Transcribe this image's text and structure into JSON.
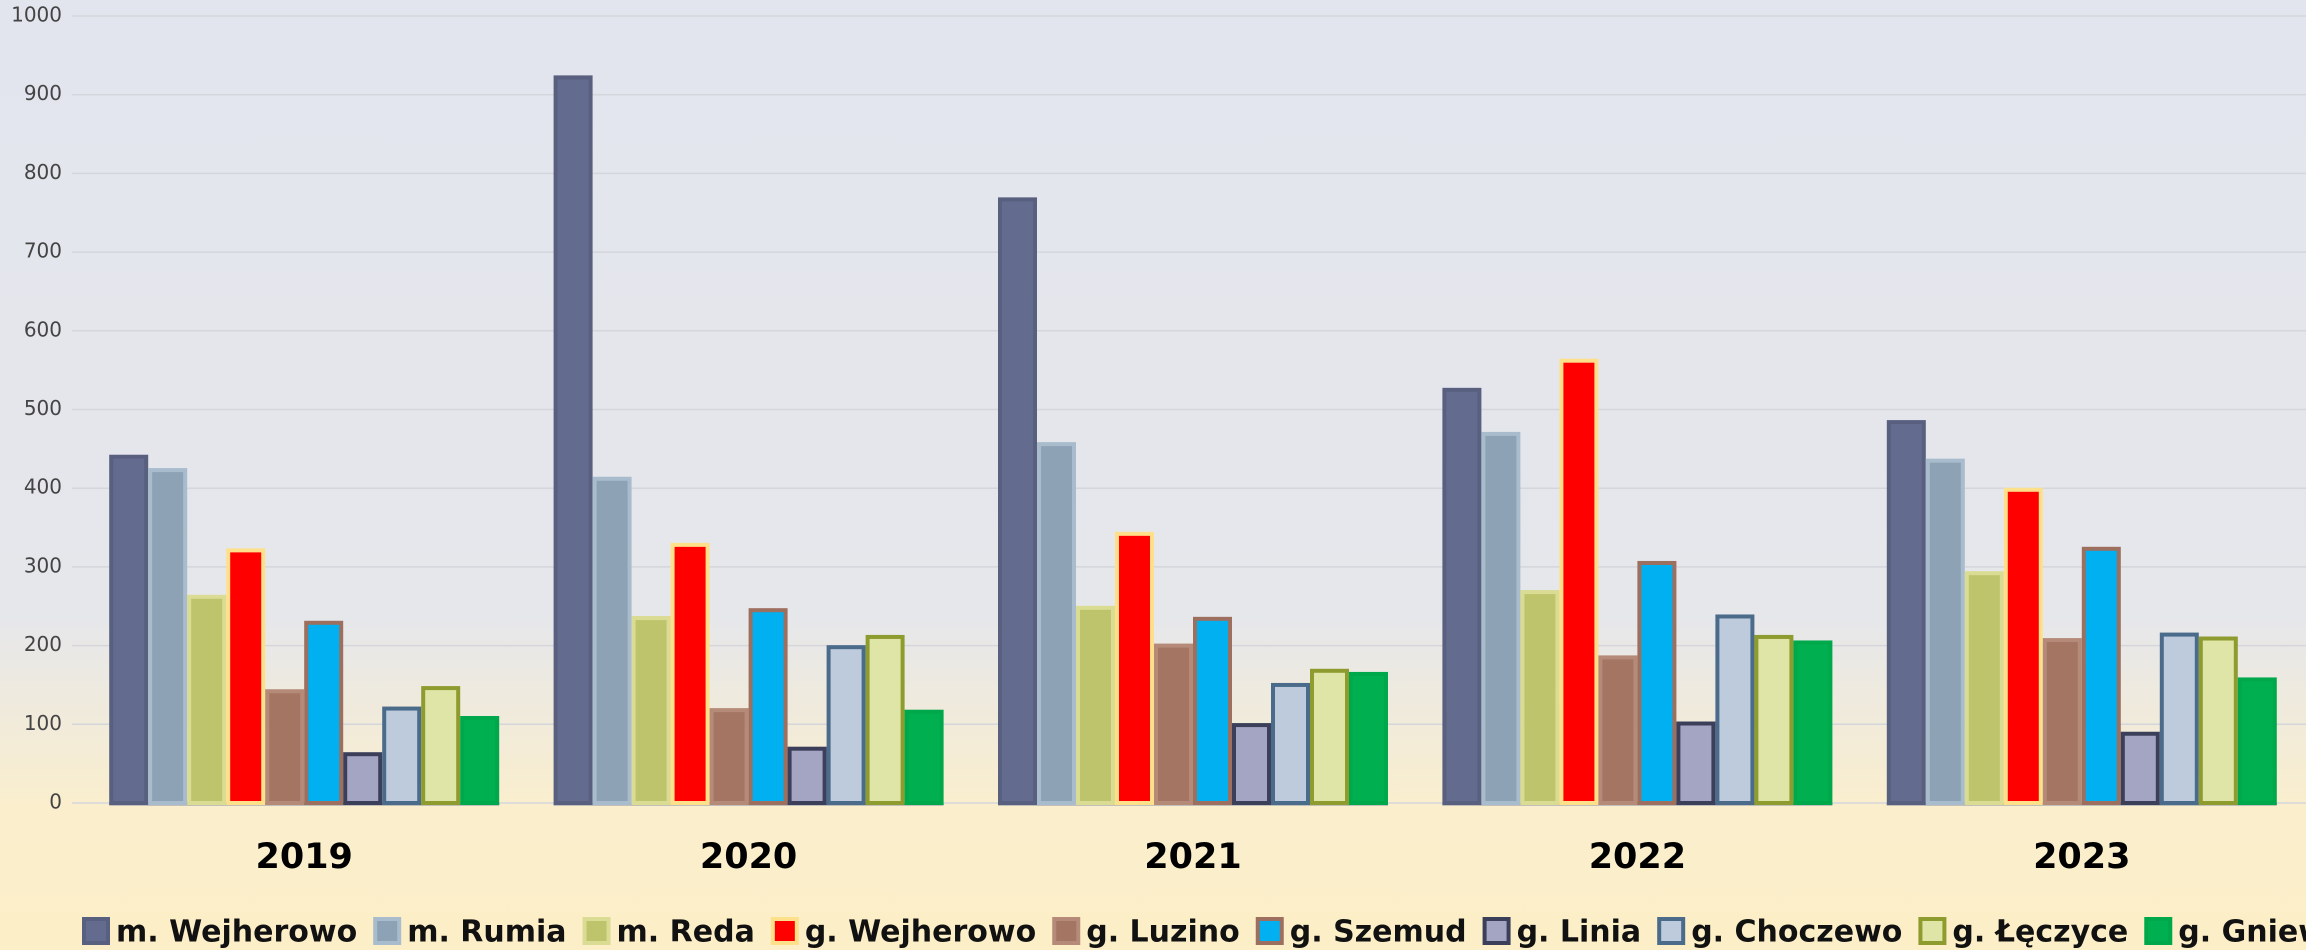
{
  "chart_data": {
    "type": "bar",
    "categories": [
      "2019",
      "2020",
      "2021",
      "2022",
      "2023"
    ],
    "series": [
      {
        "name": "m. Wejherowo",
        "color": "#636b8f",
        "edgecolor": "#59607f",
        "values": [
          440,
          922,
          767,
          525,
          484
        ]
      },
      {
        "name": "m. Rumia",
        "color": "#8ea2b6",
        "edgecolor": "#a9bccd",
        "values": [
          423,
          412,
          456,
          469,
          435
        ]
      },
      {
        "name": "m. Reda",
        "color": "#bec46c",
        "edgecolor": "#d9dc92",
        "values": [
          262,
          235,
          248,
          268,
          292
        ]
      },
      {
        "name": "g. Wejherowo",
        "color": "#ff0000",
        "edgecolor": "#ffe08a",
        "values": [
          321,
          328,
          342,
          562,
          398
        ]
      },
      {
        "name": "g. Luzino",
        "color": "#a47563",
        "edgecolor": "#b58a78",
        "values": [
          142,
          118,
          200,
          185,
          207
        ]
      },
      {
        "name": "g. Szemud",
        "color": "#00b0f0",
        "edgecolor": "#9c6f5f",
        "values": [
          229,
          245,
          234,
          305,
          323
        ]
      },
      {
        "name": "g. Linia",
        "color": "#a3a5c3",
        "edgecolor": "#3b3f5a",
        "values": [
          62,
          69,
          99,
          101,
          88
        ]
      },
      {
        "name": "g. Choczewo",
        "color": "#bdcbdd",
        "edgecolor": "#4b6b8a",
        "values": [
          120,
          198,
          150,
          237,
          214
        ]
      },
      {
        "name": "g. Łęczyce",
        "color": "#dfe5a6",
        "edgecolor": "#8e9b2e",
        "values": [
          146,
          211,
          168,
          211,
          209
        ]
      },
      {
        "name": "g. Gniewino",
        "color": "#00b050",
        "edgecolor": "#00a84c",
        "values": [
          108,
          116,
          164,
          204,
          157
        ]
      }
    ],
    "ylim": [
      0,
      1000
    ],
    "yticks": [
      0,
      100,
      200,
      300,
      400,
      500,
      600,
      700,
      800,
      900,
      1000
    ],
    "grid": true,
    "legend": "bottom"
  }
}
